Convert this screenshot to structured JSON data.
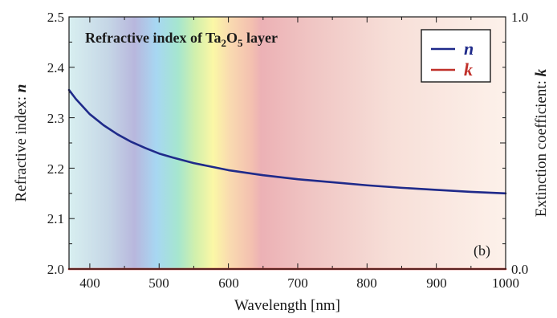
{
  "chart_data": {
    "type": "line",
    "title": "Refractive index of Ta",
    "title_sub1": "2",
    "title_mid": "O",
    "title_sub2": "5",
    "title_end": " layer",
    "panel_label": "(b)",
    "xlabel": "Wavelength [nm]",
    "ylabel_left": "Refractive index: ",
    "ylabel_left_symbol": "n",
    "ylabel_right": "Extinction coefficient: ",
    "ylabel_right_symbol": "k",
    "xlim": [
      370,
      1000
    ],
    "ylim_left": [
      2.0,
      2.5
    ],
    "ylim_right": [
      0.0,
      1.0
    ],
    "x_ticks": [
      "400",
      "500",
      "600",
      "700",
      "800",
      "900",
      "1000"
    ],
    "y_ticks_left": [
      "2.0",
      "2.1",
      "2.2",
      "2.3",
      "2.4",
      "2.5"
    ],
    "y_ticks_right": [
      "0.0",
      "1.0"
    ],
    "legend_placement": "top-right",
    "background": "visible-spectrum color bands",
    "series": [
      {
        "name": "n",
        "axis": "left",
        "color": "#1f2a8a",
        "x": [
          370,
          380,
          400,
          420,
          440,
          460,
          480,
          500,
          520,
          550,
          600,
          650,
          700,
          750,
          800,
          850,
          900,
          950,
          1000
        ],
        "y": [
          2.355,
          2.337,
          2.307,
          2.285,
          2.267,
          2.252,
          2.24,
          2.229,
          2.221,
          2.21,
          2.196,
          2.186,
          2.178,
          2.172,
          2.166,
          2.161,
          2.157,
          2.153,
          2.15
        ]
      },
      {
        "name": "k",
        "axis": "right",
        "color": "#c0302a",
        "x": [
          370,
          1000
        ],
        "y": [
          0.0,
          0.0
        ]
      }
    ]
  }
}
